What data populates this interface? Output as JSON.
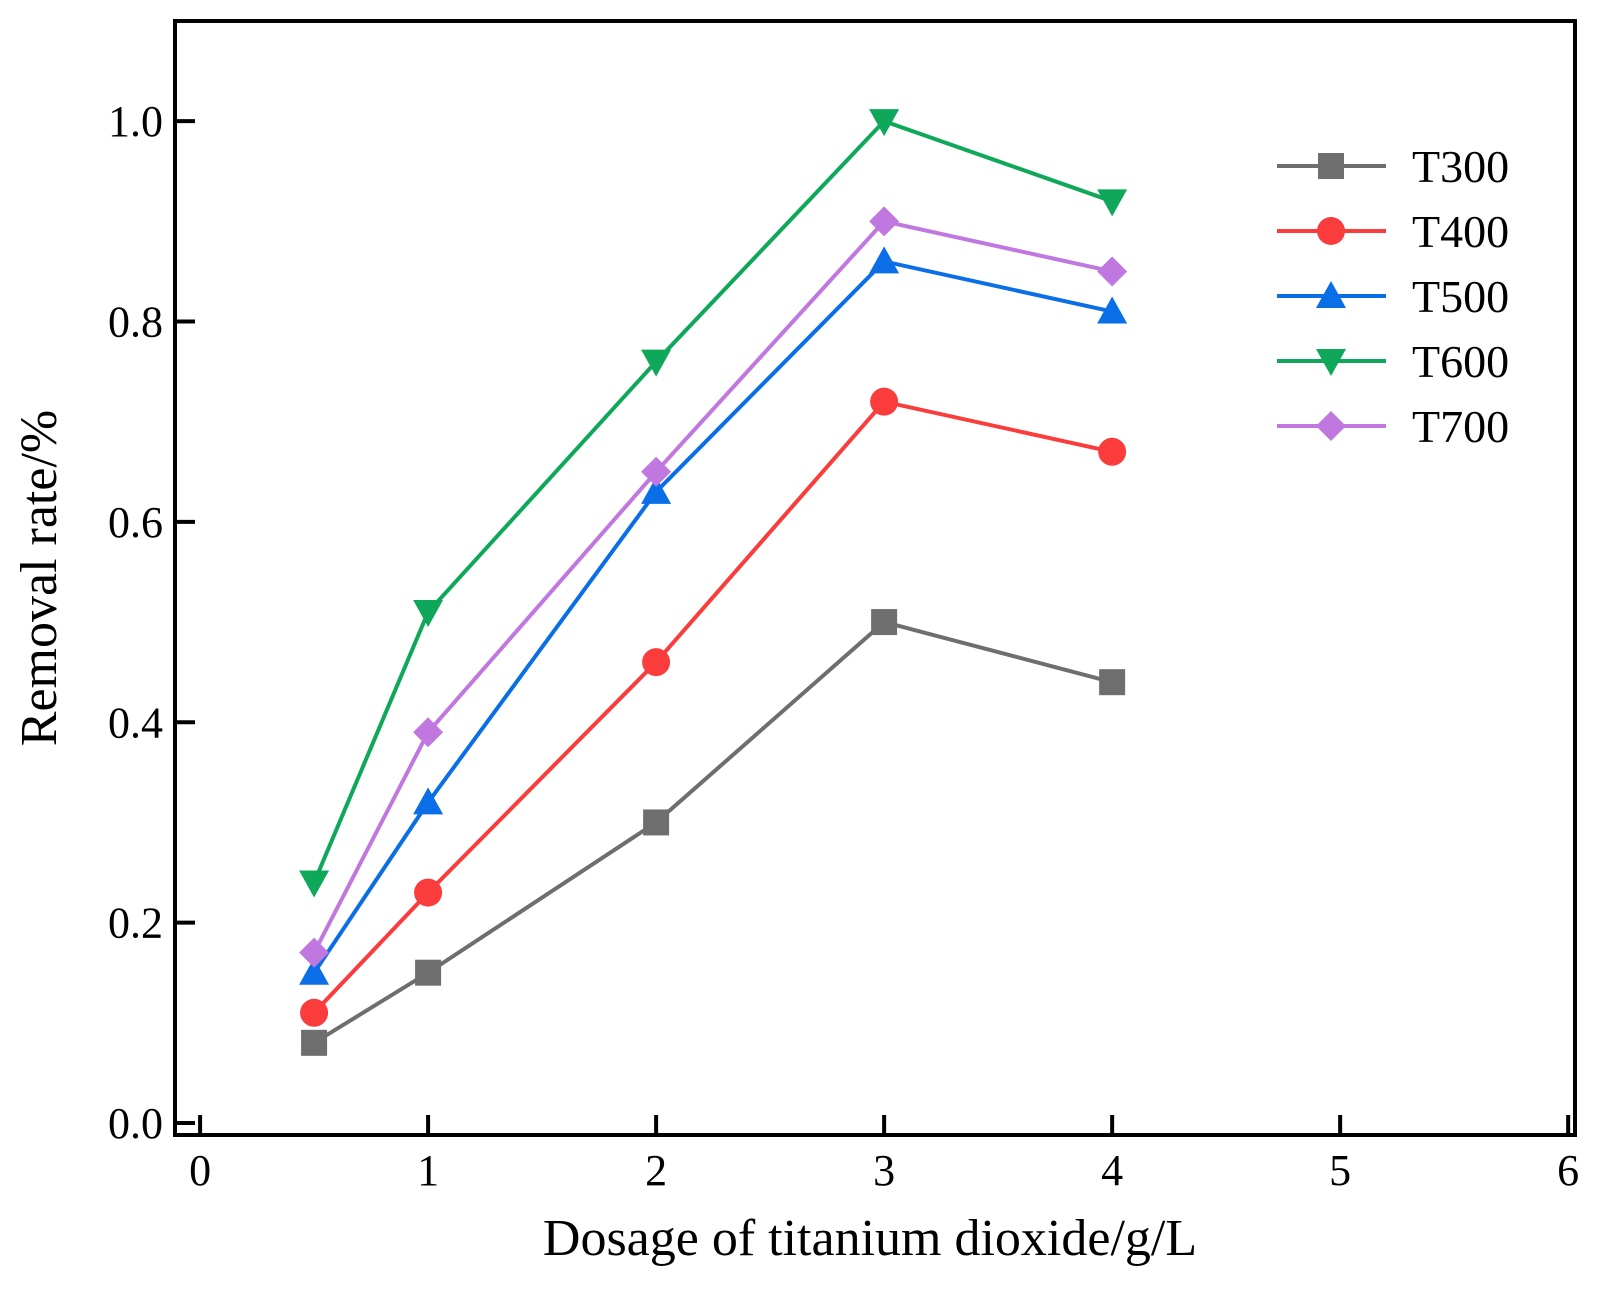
{
  "chart_data": {
    "type": "line",
    "title": "",
    "xlabel": "Dosage of titanium dioxide/g/L",
    "ylabel": "Removal rate/%",
    "xlim": [
      -0.11,
      6.03
    ],
    "ylim": [
      -0.012,
      1.1
    ],
    "xticks": [
      0,
      1,
      2,
      3,
      4,
      5,
      6
    ],
    "xtick_labels": [
      "0",
      "1",
      "2",
      "3",
      "4",
      "5",
      "6"
    ],
    "yticks": [
      0.0,
      0.2,
      0.4,
      0.6,
      0.8,
      1.0
    ],
    "ytick_labels": [
      "0.0",
      "0.2",
      "0.4",
      "0.6",
      "0.8",
      "1.0"
    ],
    "grid": false,
    "legend_position": "top-right",
    "x": [
      0.5,
      1,
      2,
      3,
      4
    ],
    "series": [
      {
        "name": "T300",
        "color": "#6e6e6e",
        "marker": "square",
        "values": [
          0.08,
          0.15,
          0.3,
          0.5,
          0.44
        ]
      },
      {
        "name": "T400",
        "color": "#fa3c3c",
        "marker": "circle",
        "values": [
          0.11,
          0.23,
          0.46,
          0.72,
          0.67
        ]
      },
      {
        "name": "T500",
        "color": "#0a6ee6",
        "marker": "triangle-up",
        "values": [
          0.15,
          0.32,
          0.63,
          0.86,
          0.81
        ]
      },
      {
        "name": "T600",
        "color": "#0fa85a",
        "marker": "triangle-down",
        "values": [
          0.24,
          0.51,
          0.76,
          1.0,
          0.92
        ]
      },
      {
        "name": "T700",
        "color": "#c078e0",
        "marker": "diamond",
        "values": [
          0.17,
          0.39,
          0.65,
          0.9,
          0.85
        ]
      }
    ]
  }
}
